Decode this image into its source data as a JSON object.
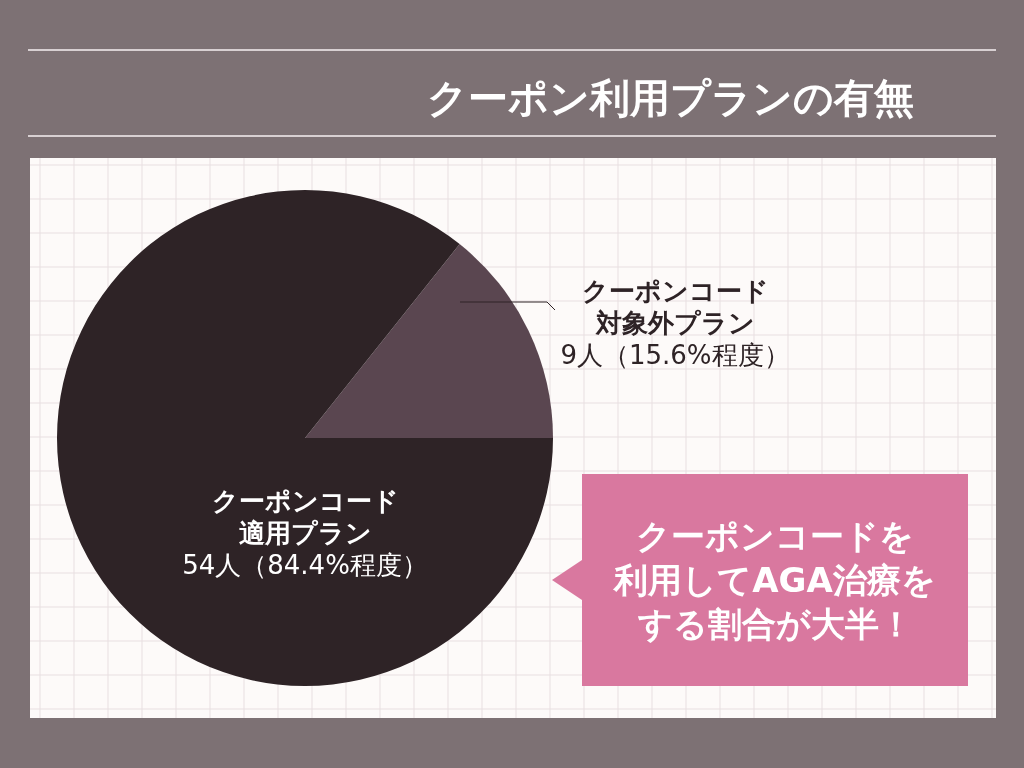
{
  "chart_data": {
    "type": "pie",
    "title": "クーポン利用プランの有無",
    "categories": [
      "クーポンコード対象外プラン",
      "クーポンコード適用プラン"
    ],
    "values": [
      9,
      54
    ],
    "value_labels": [
      "9人（15.6%程度）",
      "54人（84.4%程度）"
    ],
    "colors": [
      "#5a4650",
      "#2e2326"
    ],
    "annotations": [
      "クーポンコードを利用してAGA治療をする割合が大半！"
    ]
  }
}
